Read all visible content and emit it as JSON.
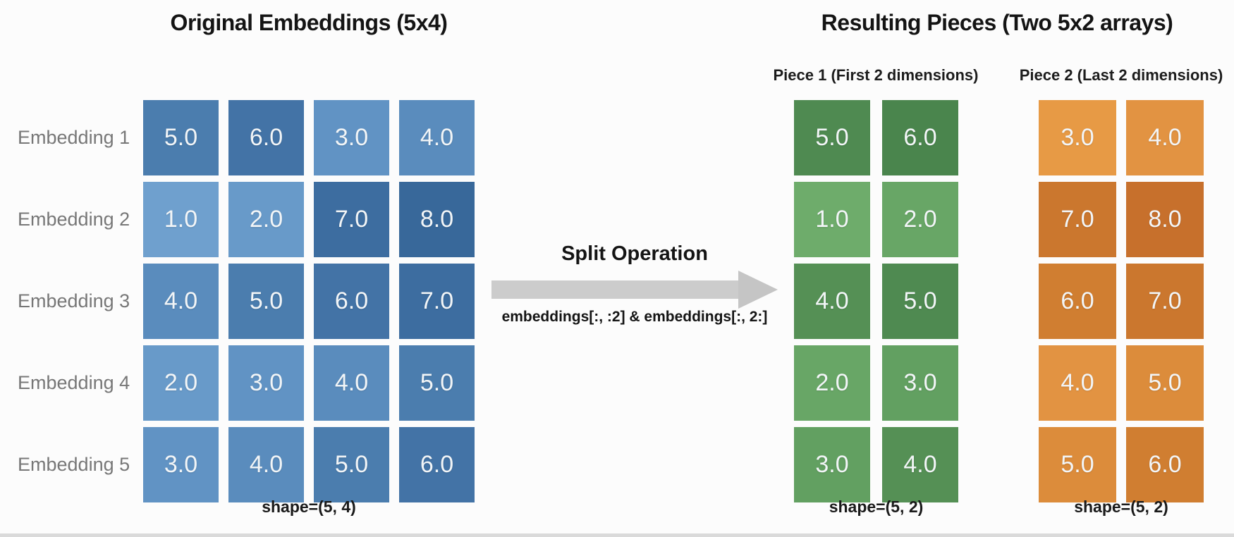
{
  "left": {
    "title": "Original Embeddings (5x4)",
    "row_labels": [
      "Embedding 1",
      "Embedding 2",
      "Embedding 3",
      "Embedding 4",
      "Embedding 5"
    ],
    "rows": [
      [
        "5.0",
        "6.0",
        "3.0",
        "4.0"
      ],
      [
        "1.0",
        "2.0",
        "7.0",
        "8.0"
      ],
      [
        "4.0",
        "5.0",
        "6.0",
        "7.0"
      ],
      [
        "2.0",
        "3.0",
        "4.0",
        "5.0"
      ],
      [
        "3.0",
        "4.0",
        "5.0",
        "6.0"
      ]
    ],
    "shape_label": "shape=(5, 4)",
    "palette": {
      "1.0": "#6FA0CE",
      "2.0": "#689AC9",
      "3.0": "#6193C4",
      "4.0": "#5A8CBD",
      "5.0": "#4B7DAE",
      "6.0": "#4373A6",
      "7.0": "#3D6DA0",
      "8.0": "#38689A"
    }
  },
  "middle": {
    "title": "Split Operation",
    "code": "embeddings[:, :2] & embeddings[:, 2:]",
    "arrow_shaft_color": "#cccccc",
    "arrow_head_color": "#c5c5c5"
  },
  "right": {
    "title": "Resulting Pieces (Two 5x2 arrays)",
    "pieces": [
      {
        "subtitle": "Piece 1 (First 2 dimensions)",
        "rows": [
          [
            "5.0",
            "6.0"
          ],
          [
            "1.0",
            "2.0"
          ],
          [
            "4.0",
            "5.0"
          ],
          [
            "2.0",
            "3.0"
          ],
          [
            "3.0",
            "4.0"
          ]
        ],
        "shape_label": "shape=(5, 2)",
        "palette": {
          "1.0": "#6EAC6B",
          "2.0": "#68A666",
          "3.0": "#62A061",
          "4.0": "#559055",
          "5.0": "#4F8A51",
          "6.0": "#4A854D"
        }
      },
      {
        "subtitle": "Piece 2 (Last 2 dimensions)",
        "rows": [
          [
            "3.0",
            "4.0"
          ],
          [
            "7.0",
            "8.0"
          ],
          [
            "6.0",
            "7.0"
          ],
          [
            "4.0",
            "5.0"
          ],
          [
            "5.0",
            "6.0"
          ]
        ],
        "shape_label": "shape=(5, 2)",
        "palette": {
          "3.0": "#E79A45",
          "4.0": "#E29342",
          "5.0": "#DC8C3B",
          "6.0": "#D07E31",
          "7.0": "#CB772E",
          "8.0": "#C7702C"
        }
      }
    ]
  }
}
